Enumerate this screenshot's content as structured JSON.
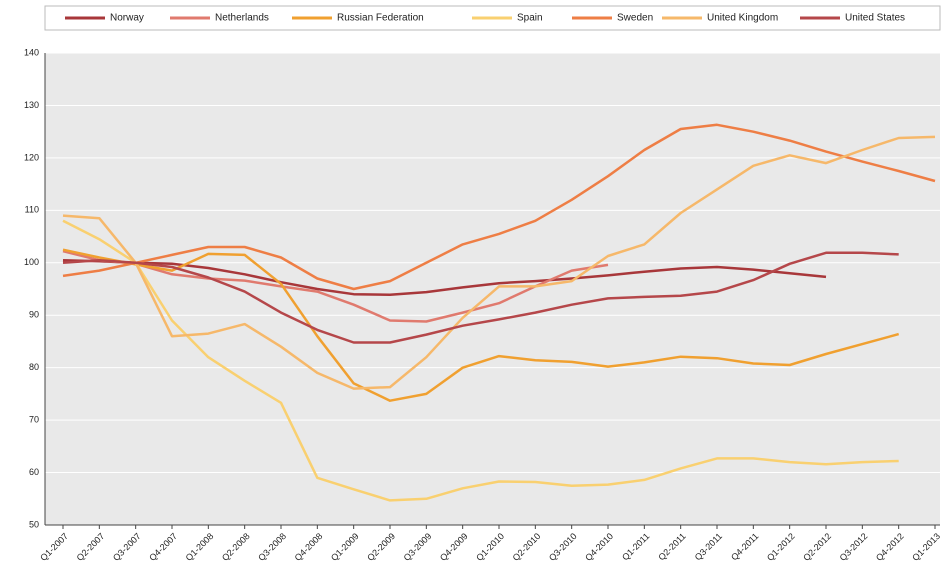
{
  "chart_data": {
    "type": "line",
    "categories": [
      "Q1-2007",
      "Q2-2007",
      "Q3-2007",
      "Q4-2007",
      "Q1-2008",
      "Q2-2008",
      "Q3-2008",
      "Q4-2008",
      "Q1-2009",
      "Q2-2009",
      "Q3-2009",
      "Q4-2009",
      "Q1-2010",
      "Q2-2010",
      "Q3-2010",
      "Q4-2010",
      "Q1-2011",
      "Q2-2011",
      "Q3-2011",
      "Q4-2011",
      "Q1-2012",
      "Q2-2012",
      "Q3-2012",
      "Q4-2012",
      "Q1-2013"
    ],
    "series": [
      {
        "name": "Norway",
        "color": "#a8373a",
        "values": [
          100.5,
          100.3,
          100,
          99.8,
          99,
          97.8,
          96.3,
          95,
          94,
          93.9,
          94.4,
          95.3,
          96.1,
          96.5,
          97,
          97.6,
          98.3,
          98.9,
          99.2,
          98.7,
          98,
          97.3,
          null,
          null,
          null
        ]
      },
      {
        "name": "Netherlands",
        "color": "#e07a6e",
        "values": [
          102.2,
          100.5,
          99.8,
          97.8,
          97,
          96.6,
          95.5,
          94.5,
          92,
          89,
          88.8,
          90.5,
          92.3,
          95.5,
          98.5,
          99.6,
          null,
          null,
          null,
          null,
          null,
          null,
          null,
          null,
          null
        ]
      },
      {
        "name": "Russian Federation",
        "color": "#f0a030",
        "values": [
          102.5,
          101,
          99.7,
          98.5,
          101.7,
          101.5,
          96,
          86,
          77,
          73.7,
          75,
          80,
          82.2,
          81.4,
          81.1,
          80.2,
          81,
          82.1,
          81.8,
          80.8,
          80.5,
          82.6,
          84.5,
          86.4,
          null
        ]
      },
      {
        "name": "Spain",
        "color": "#f9d070",
        "values": [
          108,
          104.5,
          100,
          89,
          82,
          77.5,
          73.3,
          59,
          56.8,
          54.7,
          55,
          57,
          58.3,
          58.2,
          57.5,
          57.7,
          58.6,
          60.8,
          62.7,
          62.7,
          62,
          61.6,
          62,
          62.2,
          null
        ]
      },
      {
        "name": "Sweden",
        "color": "#ee7e45",
        "values": [
          97.5,
          98.5,
          100,
          101.5,
          103,
          103,
          101,
          97,
          95,
          96.5,
          100,
          103.5,
          105.5,
          108,
          112,
          116.5,
          121.5,
          125.5,
          126.3,
          125,
          123.3,
          121.2,
          119.3,
          117.5,
          115.6
        ]
      },
      {
        "name": "United Kingdom",
        "color": "#f6b86a",
        "values": [
          109,
          108.5,
          100,
          86,
          86.5,
          88.3,
          84,
          79,
          76,
          76.3,
          82,
          89.5,
          95.5,
          95.5,
          96.5,
          101.3,
          103.5,
          109.5,
          114,
          118.5,
          120.5,
          119,
          121.5,
          123.8,
          124
        ]
      },
      {
        "name": "United States",
        "color": "#b5474a",
        "values": [
          100,
          100.5,
          100,
          99.2,
          97.2,
          94.5,
          90.5,
          87.2,
          84.8,
          84.8,
          86.3,
          88,
          89.2,
          90.5,
          92,
          93.2,
          93.5,
          93.7,
          94.5,
          96.7,
          99.8,
          101.9,
          101.9,
          101.6,
          null
        ]
      }
    ],
    "ylim": [
      50,
      140
    ],
    "yticks": [
      50,
      60,
      70,
      80,
      90,
      100,
      110,
      120,
      130,
      140
    ],
    "grid": true,
    "legend": "top"
  }
}
